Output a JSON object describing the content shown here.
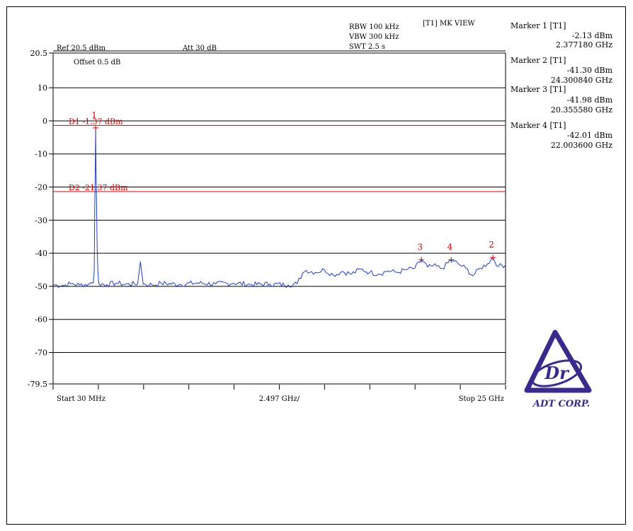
{
  "header": {
    "rbw": "RBW 100 kHz",
    "vbw": "VBW 300 kHz",
    "swt": "SWT 2.5 s",
    "mode": "[T1] MK VIEW",
    "ref": "Ref 20.5 dBm",
    "att": "Att 30 dB",
    "offset": "Offset 0.5 dB"
  },
  "markers_panel": [
    {
      "title": "Marker 1 [T1]",
      "level": "-2.13 dBm",
      "freq": "2.377180 GHz"
    },
    {
      "title": "Marker 2 [T1]",
      "level": "-41.30 dBm",
      "freq": "24.300840 GHz"
    },
    {
      "title": "Marker 3 [T1]",
      "level": "-41.98 dBm",
      "freq": "20.355580 GHz"
    },
    {
      "title": "Marker 4 [T1]",
      "level": "-42.01 dBm",
      "freq": "22.003600 GHz"
    }
  ],
  "logo": {
    "monogram": "Dr",
    "text": "ADT CORP."
  },
  "colors": {
    "trace": "#1f3fbf",
    "lines": "#d40000",
    "grid": "#000000"
  },
  "chart_data": {
    "type": "line",
    "xlim": [
      0.03,
      25
    ],
    "ylim": [
      -79.5,
      20.5
    ],
    "yticks": [
      {
        "value": 20.5,
        "label": "20.5"
      },
      {
        "value": 10,
        "label": "10"
      },
      {
        "value": 0,
        "label": "0"
      },
      {
        "value": -10,
        "label": "-10"
      },
      {
        "value": -20,
        "label": "-20"
      },
      {
        "value": -30,
        "label": "-30"
      },
      {
        "value": -40,
        "label": "-40"
      },
      {
        "value": -50,
        "label": "-50"
      },
      {
        "value": -60,
        "label": "-60"
      },
      {
        "value": -70,
        "label": "-70"
      },
      {
        "value": -79.5,
        "label": "-79.5"
      }
    ],
    "xlabels": {
      "start": "Start 30 MHz",
      "div": "2.497 GHz/",
      "stop": "Stop 25 GHz"
    },
    "display_lines": [
      {
        "label": "D1 -1.37 dBm",
        "value": -1.37
      },
      {
        "label": "D2 -21.37 dBm",
        "value": -21.37
      }
    ],
    "markers": [
      {
        "label": "1",
        "x": 2.377,
        "y": -2.13
      },
      {
        "label": "2",
        "x": 24.301,
        "y": -41.3
      },
      {
        "label": "3",
        "x": 20.356,
        "y": -41.98
      },
      {
        "label": "4",
        "x": 22.004,
        "y": -42.01
      }
    ],
    "series": [
      {
        "values": [
          [
            0.03,
            -49.5
          ],
          [
            0.5,
            -49.8
          ],
          [
            1.0,
            -49.2
          ],
          [
            1.5,
            -49.6
          ],
          [
            2.0,
            -49.3
          ],
          [
            2.25,
            -49.0
          ],
          [
            2.3,
            -45
          ],
          [
            2.33,
            -25
          ],
          [
            2.36,
            -14
          ],
          [
            2.377,
            -2.13
          ],
          [
            2.4,
            -14
          ],
          [
            2.43,
            -25
          ],
          [
            2.46,
            -38
          ],
          [
            2.5,
            -45
          ],
          [
            2.55,
            -49.2
          ],
          [
            3.0,
            -49.5
          ],
          [
            3.5,
            -49.0
          ],
          [
            4.0,
            -49.4
          ],
          [
            4.7,
            -49.2
          ],
          [
            4.85,
            -42.5
          ],
          [
            5.0,
            -49.3
          ],
          [
            5.5,
            -49.6
          ],
          [
            6.0,
            -49.1
          ],
          [
            7.0,
            -49.4
          ],
          [
            8.0,
            -49.0
          ],
          [
            9.0,
            -49.3
          ],
          [
            10.0,
            -49.0
          ],
          [
            11.0,
            -49.5
          ],
          [
            12.0,
            -49.3
          ],
          [
            13.0,
            -49.6
          ],
          [
            13.5,
            -49.2
          ],
          [
            13.8,
            -46
          ],
          [
            14.0,
            -45.2
          ],
          [
            14.5,
            -45.8
          ],
          [
            15.0,
            -45.0
          ],
          [
            15.5,
            -46.6
          ],
          [
            16.0,
            -45.5
          ],
          [
            16.5,
            -46.3
          ],
          [
            17.0,
            -44.8
          ],
          [
            17.5,
            -45.8
          ],
          [
            18.0,
            -46.3
          ],
          [
            18.5,
            -45.3
          ],
          [
            19.0,
            -45.8
          ],
          [
            19.5,
            -45.0
          ],
          [
            20.0,
            -44.5
          ],
          [
            20.356,
            -41.98
          ],
          [
            20.7,
            -44.2
          ],
          [
            21.0,
            -43.8
          ],
          [
            21.5,
            -44.6
          ],
          [
            22.004,
            -42.01
          ],
          [
            22.5,
            -43.6
          ],
          [
            22.8,
            -44.5
          ],
          [
            23.2,
            -46.8
          ],
          [
            23.6,
            -44.5
          ],
          [
            24.0,
            -43.2
          ],
          [
            24.301,
            -41.3
          ],
          [
            24.6,
            -44.0
          ],
          [
            25.0,
            -43.5
          ]
        ]
      }
    ]
  }
}
